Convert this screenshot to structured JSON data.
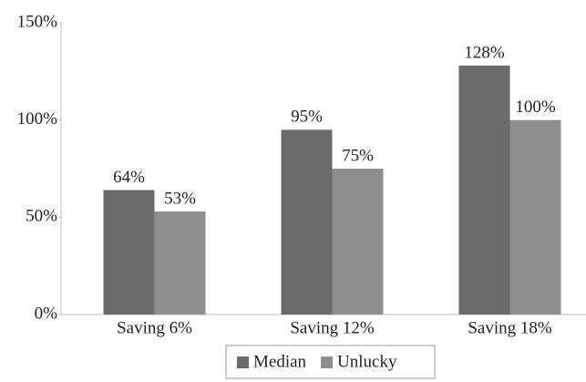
{
  "chart_data": {
    "type": "bar",
    "categories": [
      "Saving 6%",
      "Saving 12%",
      "Saving 18%"
    ],
    "series": [
      {
        "name": "Median",
        "color": "#6b6b6d",
        "values": [
          64,
          95,
          128
        ],
        "value_labels": [
          "64%",
          "95%",
          "128%"
        ]
      },
      {
        "name": "Unlucky",
        "color": "#8e8e90",
        "values": [
          53,
          75,
          100
        ],
        "value_labels": [
          "53%",
          "75%",
          "100%"
        ]
      }
    ],
    "ylim": [
      0,
      150
    ],
    "yticks": [
      {
        "value": 0,
        "label": "0%"
      },
      {
        "value": 50,
        "label": "50%"
      },
      {
        "value": 100,
        "label": "100%"
      },
      {
        "value": 150,
        "label": "150%"
      }
    ],
    "grid": false,
    "legend": "bottom"
  }
}
